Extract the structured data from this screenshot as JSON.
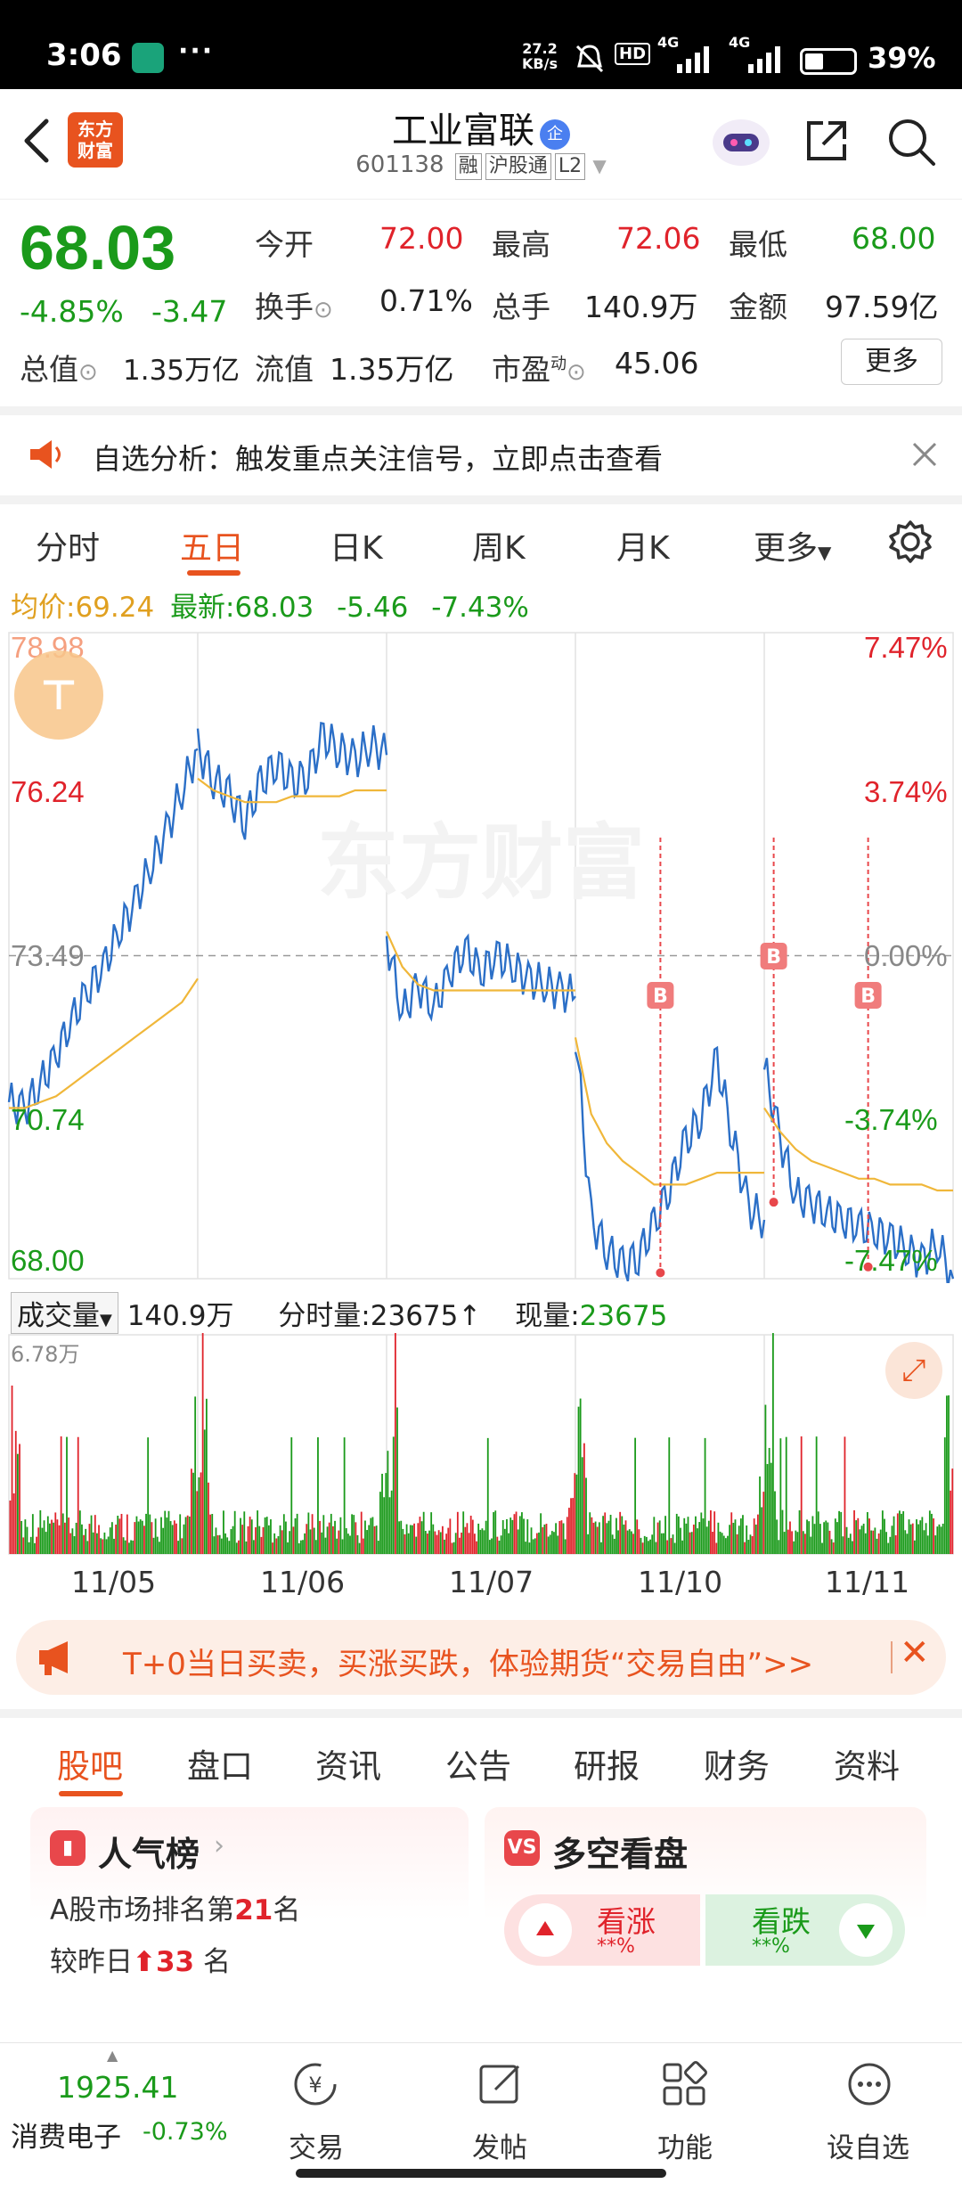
{
  "status_bar": {
    "time": "3:06",
    "dots": "···",
    "net_speed_value": "27.2",
    "net_speed_unit": "KB/s",
    "hd": "HD",
    "sig1": "4G",
    "sig2": "4G",
    "battery": "39%",
    "battery_level": 0.39
  },
  "header": {
    "back_icon": "chevron-left-icon",
    "logo_line1": "东方",
    "logo_line2": "财富",
    "stock_name": "工业富联",
    "enterprise_badge": "企",
    "stock_code": "601138",
    "tags": [
      "融",
      "沪股通",
      "L2"
    ]
  },
  "quote": {
    "price": "68.03",
    "change_pct": "-4.85%",
    "change": "-3.47",
    "open_label": "今开",
    "open": "72.00",
    "high_label": "最高",
    "high": "72.06",
    "low_label": "最低",
    "low": "68.00",
    "turnover_label": "换手",
    "turnover": "0.71%",
    "volume_label": "总手",
    "volume": "140.9万",
    "amount_label": "金额",
    "amount": "97.59亿",
    "mktcap_label": "总值",
    "mktcap": "1.35万亿",
    "float_label": "流值",
    "float_cap": "1.35万亿",
    "pe_label": "市盈",
    "pe_sup": "动",
    "pe": "45.06",
    "more": "更多"
  },
  "alert": {
    "text": "自选分析：触发重点关注信号，立即点击查看"
  },
  "chart_tabs": [
    "分时",
    "五日",
    "日K",
    "周K",
    "月K",
    "更多"
  ],
  "chart_info": {
    "avg_label": "均价:",
    "avg": "69.24",
    "latest_label": "最新:",
    "latest": "68.03",
    "change": "-5.46",
    "change_pct": "-7.43%"
  },
  "chart_data": {
    "type": "line",
    "title": "",
    "watermark": "东方财富",
    "y_labels_left": [
      "78.98",
      "76.24",
      "73.49",
      "70.74",
      "68.00"
    ],
    "y_labels_right": [
      "7.47%",
      "3.74%",
      "0.00%",
      "-3.74%",
      "-7.47%"
    ],
    "ylim": [
      68.0,
      78.98
    ],
    "prev_close": 73.49,
    "days": [
      "11/05",
      "11/06",
      "11/07",
      "11/10",
      "11/11"
    ],
    "series": [
      {
        "name": "",
        "color": "#2b6fc7",
        "values": [
          [
            71.0,
            70.9,
            71.3,
            71.8,
            72.4,
            72.9,
            73.3,
            73.9,
            74.4,
            75.0,
            75.6,
            76.3,
            77.0
          ],
          [
            77.0,
            76.5,
            76.2,
            75.8,
            76.4,
            76.8,
            76.4,
            76.6,
            77.2,
            77.0,
            76.8,
            77.1,
            76.9
          ],
          [
            73.8,
            72.5,
            73.0,
            72.6,
            73.2,
            73.6,
            73.2,
            73.5,
            73.3,
            73.1,
            73.0,
            72.9,
            72.8
          ],
          [
            72.2,
            69.0,
            68.5,
            68.2,
            68.4,
            68.9,
            69.6,
            70.3,
            70.8,
            71.7,
            70.4,
            69.2,
            69.0
          ],
          [
            71.6,
            70.4,
            69.4,
            69.3,
            69.1,
            69.0,
            68.9,
            68.8,
            68.7,
            68.5,
            68.3,
            68.6,
            68.0
          ]
        ]
      },
      {
        "name": "",
        "color": "#f0b73a",
        "values": [
          [
            70.9,
            70.9,
            71.0,
            71.1,
            71.3,
            71.5,
            71.7,
            71.9,
            72.1,
            72.3,
            72.5,
            72.7,
            73.1
          ],
          [
            76.5,
            76.3,
            76.2,
            76.1,
            76.1,
            76.1,
            76.2,
            76.2,
            76.2,
            76.2,
            76.3,
            76.3,
            76.3
          ],
          [
            73.9,
            73.3,
            73.0,
            72.9,
            72.9,
            72.9,
            72.9,
            72.9,
            72.9,
            72.9,
            72.9,
            72.9,
            72.9
          ],
          [
            72.1,
            70.8,
            70.3,
            70.0,
            69.8,
            69.6,
            69.6,
            69.6,
            69.7,
            69.8,
            69.8,
            69.8,
            69.8
          ],
          [
            70.9,
            70.5,
            70.2,
            70.0,
            69.9,
            69.8,
            69.7,
            69.7,
            69.6,
            69.6,
            69.6,
            69.5,
            69.5
          ]
        ]
      }
    ],
    "buy_markers": [
      {
        "day": 3,
        "value": 68.1,
        "label": "B"
      },
      {
        "day": 4,
        "value": 69.3,
        "label": "B"
      },
      {
        "day": 4,
        "value": 68.2,
        "label": "B"
      }
    ]
  },
  "volume": {
    "selector_label": "成交量",
    "total": "140.9万",
    "tick_label": "分时量:23675",
    "now_label": "现量:",
    "now_value": "23675",
    "max_label": "6.78万"
  },
  "promo": {
    "text": "T+0当日买卖，买涨买跌，体验期货“交易自由”>>"
  },
  "bottom_tabs": [
    "股吧",
    "盘口",
    "资讯",
    "公告",
    "研报",
    "财务",
    "资料"
  ],
  "cards": {
    "popularity": {
      "title": "人气榜",
      "line1_prefix": "A股市场排名第",
      "rank": "21",
      "line1_suffix": "名",
      "line2_prefix": "较昨日",
      "delta": "33",
      "line2_suffix": "名"
    },
    "bull_bear": {
      "title": "多空看盘",
      "up_label": "看涨",
      "up_pct": "**%",
      "down_label": "看跌",
      "down_pct": "**%"
    }
  },
  "bottom_nav": {
    "index_value": "1925.41",
    "index_name": "消费电子",
    "index_change": "-0.73%",
    "items": [
      "交易",
      "发帖",
      "功能",
      "设自选"
    ]
  }
}
